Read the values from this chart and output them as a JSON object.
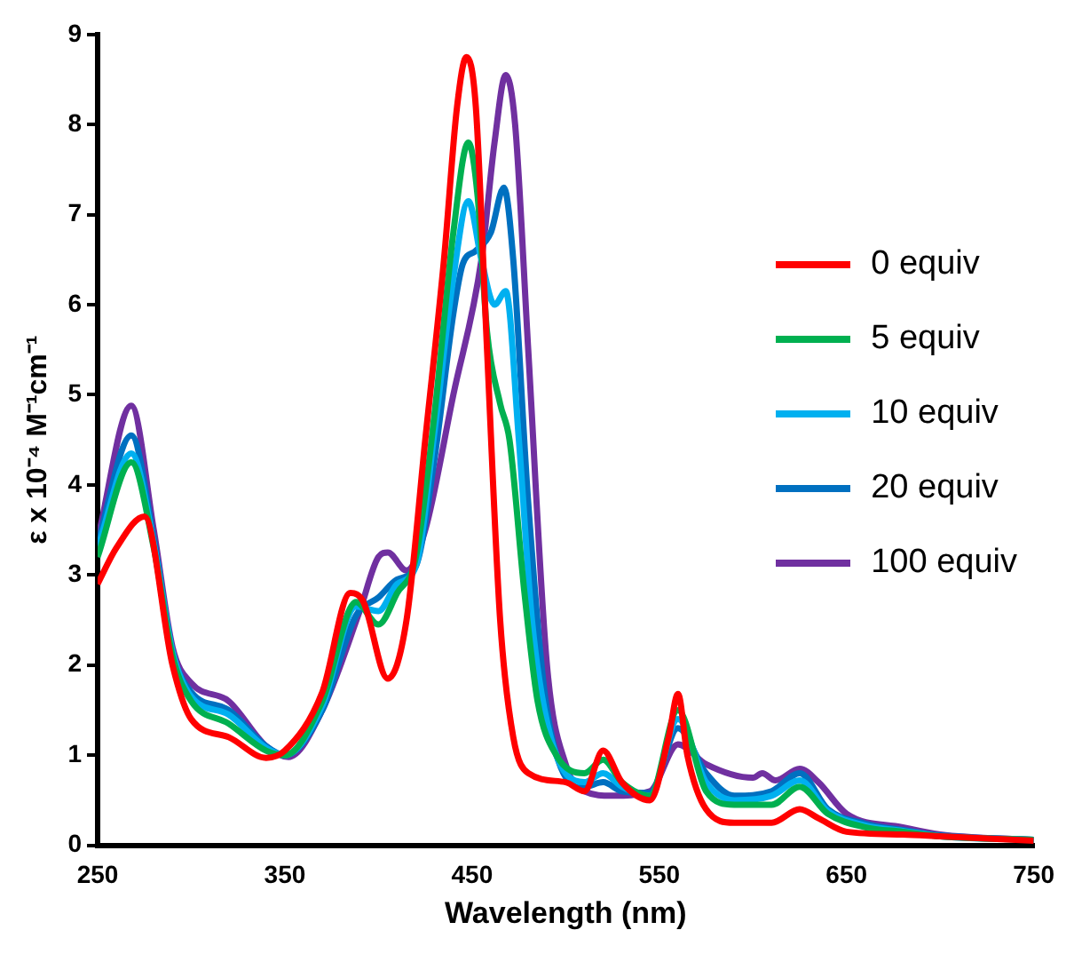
{
  "chart_data": {
    "type": "line",
    "xlabel": "Wavelength (nm)",
    "ylabel": "ε x 10⁻⁴ M⁻¹cm⁻¹",
    "xlim": [
      250,
      750
    ],
    "xticks": [
      250,
      350,
      450,
      550,
      650,
      750
    ],
    "ylim": [
      0,
      9
    ],
    "yticks": [
      0,
      1,
      2,
      3,
      4,
      5,
      6,
      7,
      8,
      9
    ],
    "grid": false,
    "legend": "right",
    "marker": "none",
    "line_style": "solid",
    "series": [
      {
        "name": "0 equiv",
        "color": "#ff0000",
        "x": [
          250,
          260,
          275,
          290,
          300,
          320,
          340,
          350,
          370,
          385,
          392,
          405,
          415,
          425,
          435,
          442,
          447,
          452,
          458,
          465,
          472,
          480,
          500,
          510,
          520,
          530,
          545,
          555,
          560,
          565,
          575,
          590,
          610,
          625,
          635,
          650,
          680,
          700,
          750
        ],
        "values": [
          2.9,
          3.3,
          3.65,
          2.0,
          1.4,
          1.2,
          0.97,
          1.05,
          1.7,
          2.8,
          2.7,
          1.85,
          2.5,
          4.5,
          6.5,
          8.2,
          8.75,
          8.2,
          5.5,
          2.5,
          1.2,
          0.8,
          0.7,
          0.6,
          1.05,
          0.7,
          0.5,
          1.2,
          1.68,
          1.0,
          0.4,
          0.25,
          0.25,
          0.4,
          0.3,
          0.15,
          0.12,
          0.1,
          0.05
        ]
      },
      {
        "name": "5 equiv",
        "color": "#00b050",
        "x": [
          250,
          268,
          280,
          290,
          300,
          320,
          340,
          350,
          370,
          388,
          400,
          410,
          420,
          430,
          440,
          448,
          453,
          458,
          465,
          470,
          478,
          485,
          495,
          510,
          520,
          530,
          545,
          560,
          575,
          590,
          610,
          625,
          640,
          660,
          680,
          700,
          750
        ],
        "values": [
          3.2,
          4.25,
          3.3,
          2.1,
          1.6,
          1.35,
          1.05,
          1.0,
          1.6,
          2.7,
          2.45,
          2.8,
          3.2,
          4.8,
          6.8,
          7.8,
          7.2,
          5.7,
          4.9,
          4.5,
          2.8,
          1.6,
          1.0,
          0.8,
          0.95,
          0.7,
          0.55,
          1.5,
          0.6,
          0.45,
          0.45,
          0.65,
          0.35,
          0.2,
          0.15,
          0.1,
          0.06
        ]
      },
      {
        "name": "10 equiv",
        "color": "#00b0f0",
        "x": [
          250,
          268,
          280,
          290,
          300,
          320,
          340,
          350,
          370,
          388,
          400,
          410,
          420,
          430,
          440,
          448,
          455,
          462,
          468,
          475,
          482,
          492,
          510,
          520,
          530,
          545,
          560,
          575,
          590,
          610,
          625,
          640,
          660,
          680,
          700,
          750
        ],
        "values": [
          3.3,
          4.35,
          3.35,
          2.15,
          1.65,
          1.45,
          1.08,
          1.0,
          1.55,
          2.65,
          2.6,
          2.9,
          3.1,
          4.6,
          6.3,
          7.15,
          6.5,
          6.0,
          6.15,
          4.5,
          2.5,
          1.2,
          0.7,
          0.8,
          0.65,
          0.55,
          1.4,
          0.7,
          0.5,
          0.55,
          0.72,
          0.38,
          0.22,
          0.16,
          0.1,
          0.06
        ]
      },
      {
        "name": "20 equiv",
        "color": "#0070c0",
        "x": [
          250,
          268,
          280,
          290,
          300,
          320,
          340,
          350,
          370,
          388,
          400,
          410,
          420,
          430,
          440,
          445,
          452,
          460,
          467,
          472,
          480,
          490,
          510,
          520,
          530,
          545,
          560,
          575,
          590,
          610,
          625,
          640,
          660,
          680,
          700,
          750
        ],
        "values": [
          3.35,
          4.55,
          3.4,
          2.15,
          1.7,
          1.5,
          1.1,
          1.0,
          1.5,
          2.55,
          2.75,
          2.95,
          3.1,
          4.3,
          5.9,
          6.45,
          6.6,
          6.8,
          7.3,
          6.5,
          3.8,
          1.5,
          0.65,
          0.7,
          0.6,
          0.58,
          1.3,
          0.8,
          0.55,
          0.6,
          0.8,
          0.4,
          0.24,
          0.17,
          0.11,
          0.06
        ]
      },
      {
        "name": "100 equiv",
        "color": "#7030a0",
        "x": [
          250,
          268,
          280,
          290,
          300,
          320,
          340,
          352,
          370,
          390,
          400,
          405,
          415,
          425,
          440,
          455,
          462,
          468,
          473,
          480,
          490,
          500,
          510,
          525,
          545,
          560,
          575,
          600,
          605,
          612,
          625,
          635,
          650,
          680,
          700,
          750
        ],
        "values": [
          3.4,
          4.88,
          3.5,
          2.2,
          1.8,
          1.6,
          1.1,
          0.98,
          1.5,
          2.6,
          3.2,
          3.25,
          3.05,
          3.5,
          5.0,
          6.5,
          7.8,
          8.55,
          8.0,
          5.5,
          2.0,
          0.9,
          0.6,
          0.55,
          0.6,
          1.12,
          0.9,
          0.75,
          0.8,
          0.72,
          0.85,
          0.7,
          0.35,
          0.2,
          0.12,
          0.06
        ]
      }
    ]
  }
}
